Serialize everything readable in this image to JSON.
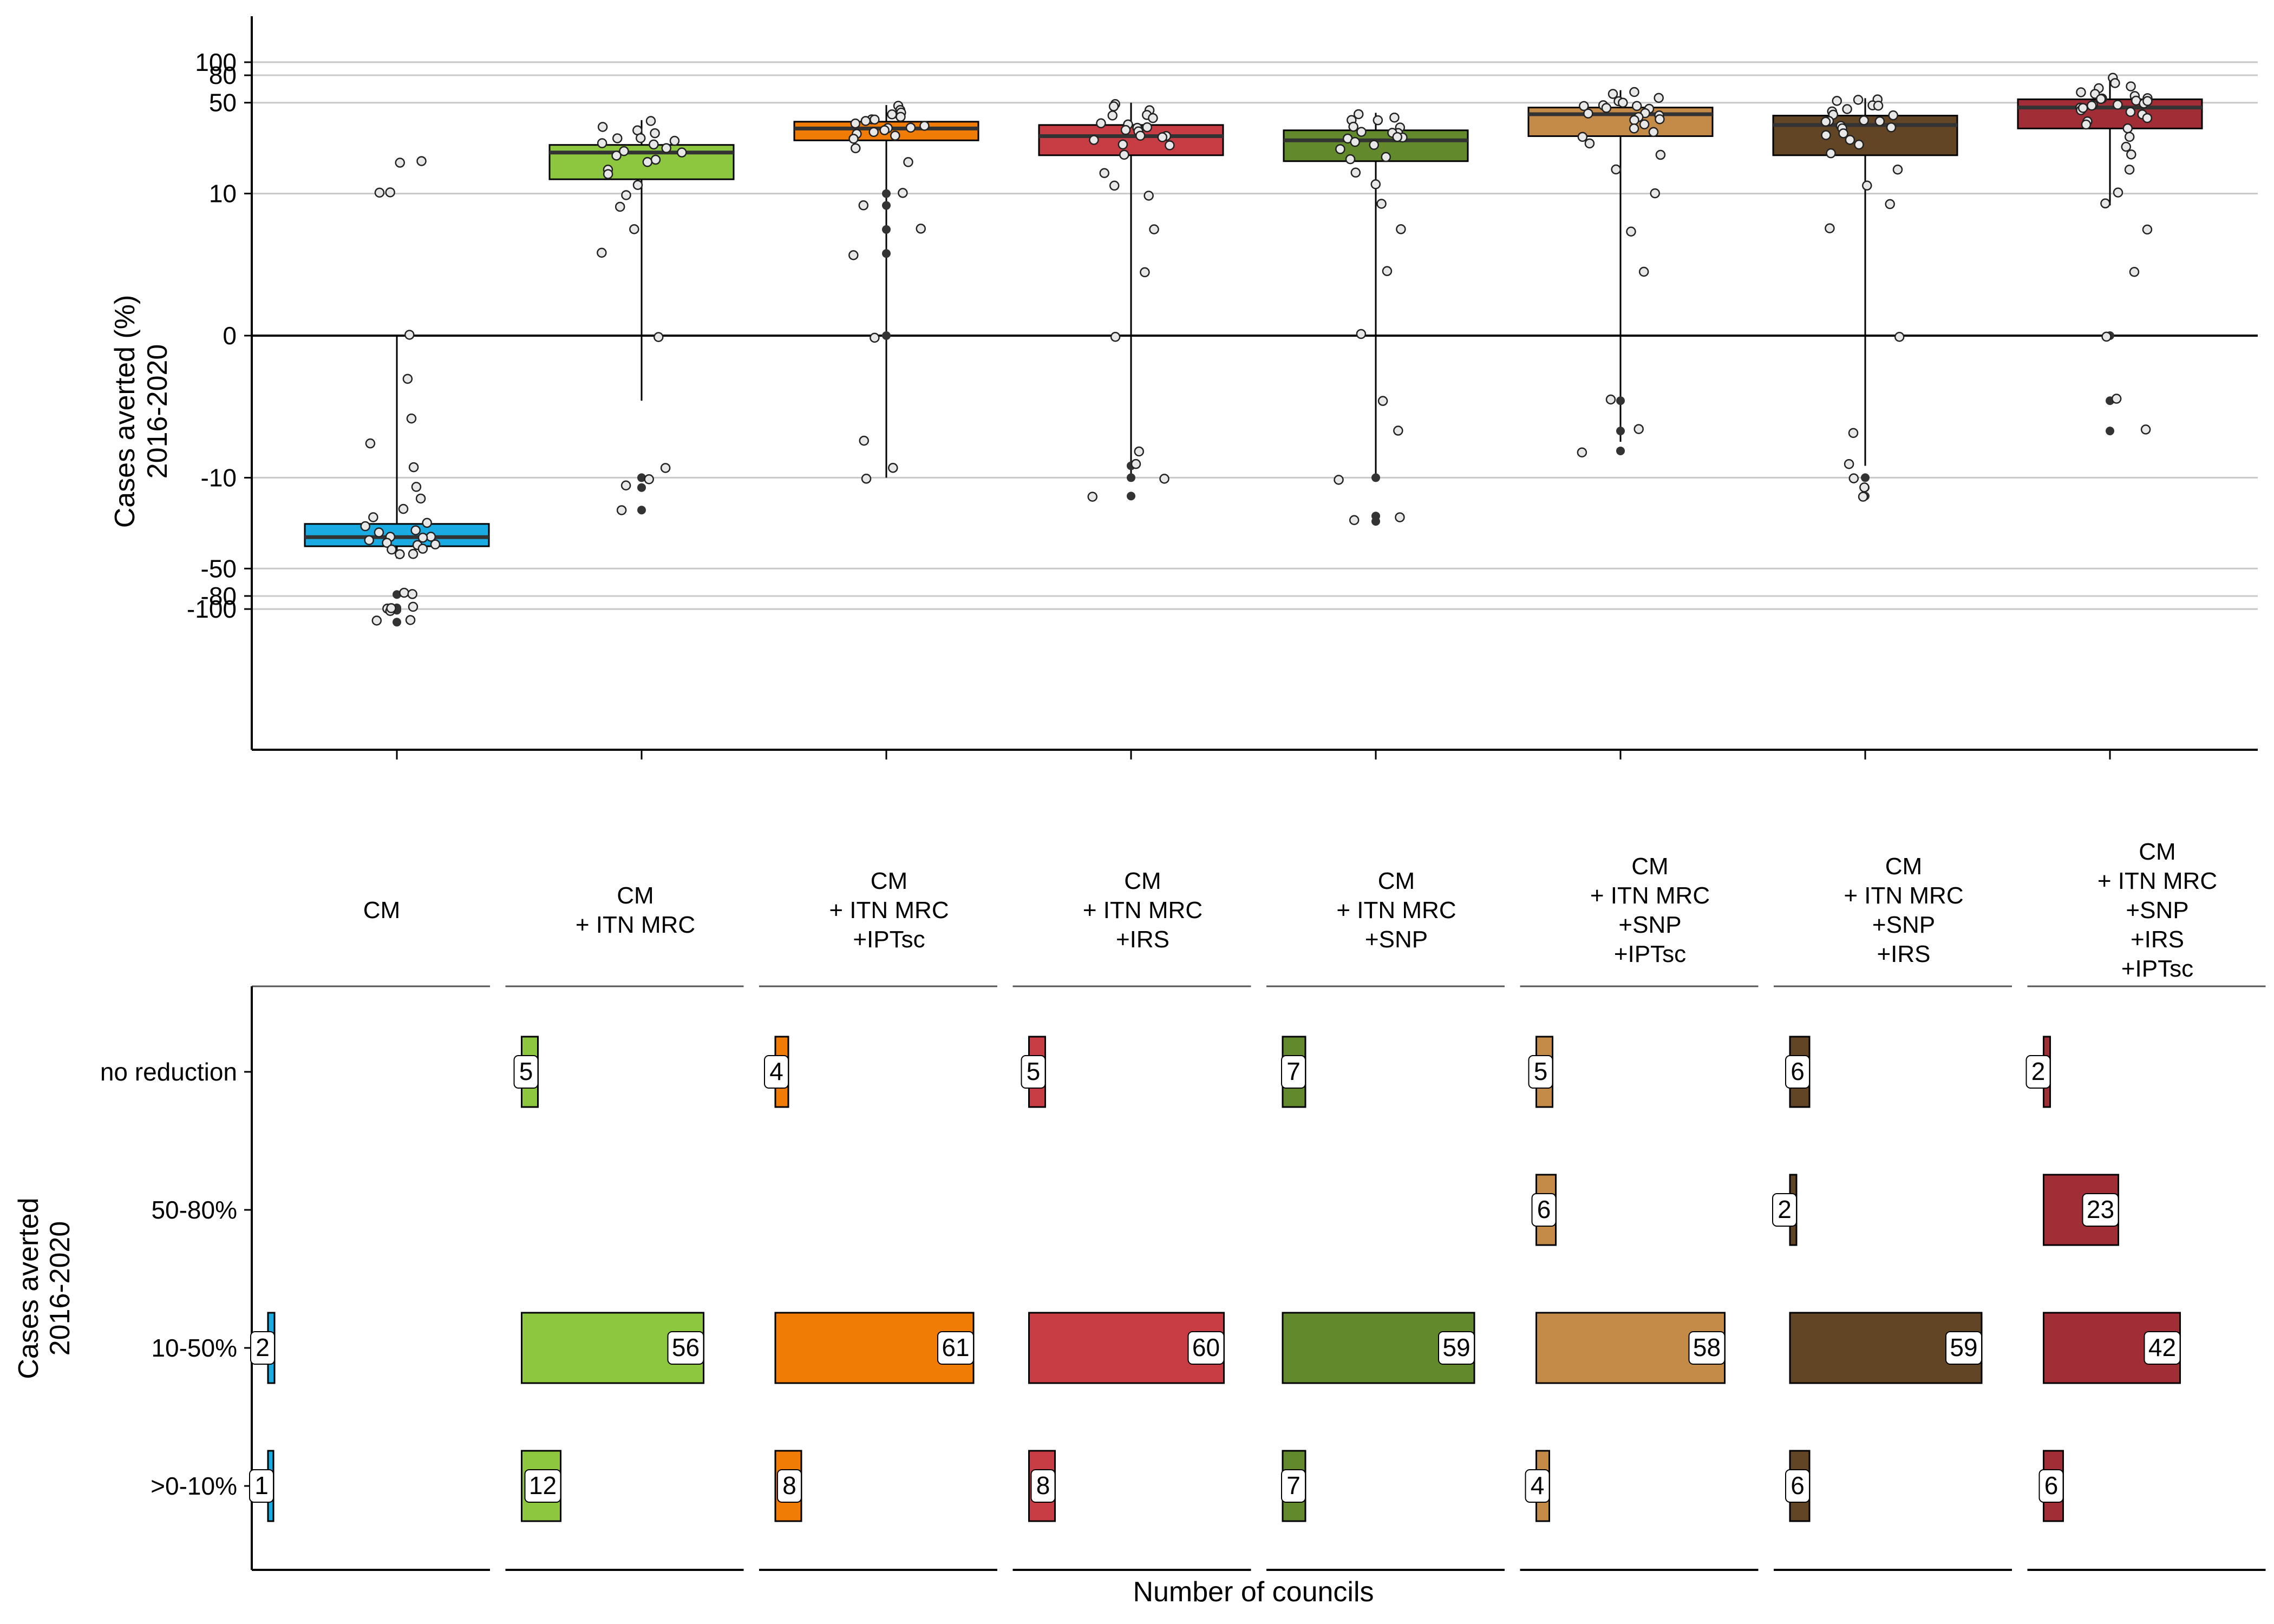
{
  "figure": {
    "top_ylabel_lines": [
      "Cases averted (%)",
      "2016-2020"
    ],
    "bottom_ylabel_lines": [
      "Cases averted",
      "2016-2020"
    ],
    "bottom_xlabel": "Number of councils"
  },
  "chart_data": [
    {
      "type": "box",
      "ylabel": "Cases averted (%) 2016-2020",
      "y_scale": "pseudo-log",
      "y_ticks": [
        100,
        80,
        50,
        10,
        0,
        -10,
        -50,
        -80,
        -100
      ],
      "tick_labels": [
        "100",
        "80",
        "50",
        "10",
        "0",
        "-10",
        "-50",
        "-80",
        "-100"
      ],
      "ylim": [
        -160,
        125
      ],
      "grid": true,
      "zero_line": true,
      "groups": [
        {
          "name": "CM",
          "label_lines": [
            "CM"
          ],
          "color": "#1aabe2",
          "q1": -34,
          "median": -29,
          "q3": -23,
          "whisker_low": -42,
          "whisker_high": 0,
          "points": [
            0,
            -1,
            -3,
            -5,
            -8,
            -12,
            -15,
            -18,
            -20,
            -22,
            -24,
            -26,
            -27,
            -28,
            -29,
            -30,
            -31,
            -32,
            -33,
            -34,
            -35,
            -36,
            -38,
            -40,
            -78,
            -78,
            -98,
            -100,
            -100,
            -102,
            -125,
            -125,
            10,
            10,
            18,
            18
          ],
          "outliers": [
            -78,
            -98,
            -100,
            -102,
            -125
          ]
        },
        {
          "name": "CM + ITN MRC",
          "label_lines": [
            "CM",
            "+ ITN MRC"
          ],
          "color": "#8dc63f",
          "q1": 13,
          "median": 21,
          "q3": 24,
          "whisker_low": -2,
          "whisker_high": 37,
          "points": [
            37,
            33,
            31,
            29,
            28,
            27,
            26,
            25,
            24,
            23,
            22,
            21,
            20,
            19,
            18,
            16,
            14,
            12,
            10,
            8,
            5,
            3,
            0,
            -8,
            -10,
            -12,
            -18
          ],
          "outliers": [
            -10,
            -12,
            -18
          ]
        },
        {
          "name": "CM + ITN MRC +IPTsc",
          "label_lines": [
            "CM",
            "+ ITN MRC",
            "+IPTsc"
          ],
          "color": "#f07b05",
          "q1": 26,
          "median": 32,
          "q3": 36,
          "whisker_low": -10,
          "whisker_high": 48,
          "points": [
            48,
            44,
            42,
            41,
            40,
            39,
            38,
            37,
            36,
            35,
            34,
            33,
            32,
            31,
            30,
            29,
            28,
            26,
            22,
            18,
            10,
            8,
            5,
            3,
            0,
            -5,
            -8,
            -10
          ],
          "outliers": [
            0,
            3,
            5,
            8,
            10
          ]
        },
        {
          "name": "CM + ITN MRC +IRS",
          "label_lines": [
            "CM",
            "+ ITN MRC",
            "+IRS"
          ],
          "color": "#c83c44",
          "q1": 20,
          "median": 28,
          "q3": 34,
          "whisker_low": -10,
          "whisker_high": 50,
          "points": [
            50,
            47,
            44,
            41,
            39,
            37,
            35,
            34,
            33,
            32,
            31,
            30,
            29,
            28,
            27,
            26,
            25,
            23,
            20,
            15,
            12,
            10,
            5,
            2,
            0,
            -6,
            -8,
            -10,
            -14
          ],
          "outliers": [
            -8,
            -10,
            -14
          ]
        },
        {
          "name": "CM + ITN MRC +SNP",
          "label_lines": [
            "CM",
            "+ ITN MRC",
            "+SNP"
          ],
          "color": "#628a2c",
          "q1": 18,
          "median": 26,
          "q3": 31,
          "whisker_low": -10,
          "whisker_high": 42,
          "points": [
            42,
            40,
            38,
            36,
            34,
            32,
            31,
            30,
            29,
            28,
            27,
            26,
            25,
            24,
            22,
            20,
            18,
            15,
            12,
            8,
            5,
            2,
            0,
            -2,
            -4,
            -10,
            -20,
            -22
          ],
          "outliers": [
            -10,
            -20,
            -22
          ]
        },
        {
          "name": "CM + ITN MRC +SNP +IPTsc",
          "label_lines": [
            "CM",
            "+ ITN MRC",
            "+SNP",
            "+IPTsc"
          ],
          "color": "#c48a48",
          "q1": 28,
          "median": 41,
          "q3": 46,
          "whisker_low": -5,
          "whisker_high": 62,
          "points": [
            62,
            58,
            55,
            52,
            50,
            48,
            47,
            46,
            45,
            44,
            43,
            42,
            41,
            40,
            38,
            36,
            34,
            32,
            30,
            28,
            24,
            20,
            15,
            10,
            5,
            2,
            -2,
            -4,
            -6
          ],
          "outliers": [
            -2,
            -4,
            -6
          ]
        },
        {
          "name": "CM + ITN MRC +SNP +IRS",
          "label_lines": [
            "CM",
            "+ ITN MRC",
            "+SNP",
            "+IRS"
          ],
          "color": "#624524",
          "q1": 20,
          "median": 34,
          "q3": 40,
          "whisker_low": -8,
          "whisker_high": 54,
          "points": [
            54,
            52,
            50,
            48,
            46,
            44,
            42,
            40,
            39,
            38,
            37,
            36,
            35,
            34,
            33,
            32,
            30,
            28,
            26,
            24,
            20,
            15,
            12,
            8,
            5,
            0,
            -4,
            -8,
            -10,
            -12,
            -14
          ],
          "outliers": [
            -10,
            -12,
            -14
          ]
        },
        {
          "name": "CM + ITN MRC +SNP +IRS +IPTsc",
          "label_lines": [
            "CM",
            "+ ITN MRC",
            "+SNP",
            "+IRS",
            "+IPTsc"
          ],
          "color": "#a12d36",
          "q1": 32,
          "median": 46,
          "q3": 53,
          "whisker_low": 8,
          "whisker_high": 74,
          "points": [
            74,
            72,
            68,
            64,
            60,
            58,
            56,
            55,
            54,
            53,
            52,
            51,
            50,
            49,
            48,
            47,
            46,
            45,
            44,
            42,
            40,
            38,
            36,
            34,
            32,
            28,
            24,
            20,
            15,
            10,
            8,
            5,
            2,
            0,
            -2,
            -4
          ],
          "outliers": [
            0,
            -2,
            -4
          ]
        }
      ]
    },
    {
      "type": "bar",
      "orientation": "horizontal",
      "facets": [
        "CM",
        "CM + ITN MRC",
        "CM + ITN MRC +IPTsc",
        "CM + ITN MRC +IRS",
        "CM + ITN MRC +SNP",
        "CM + ITN MRC +SNP +IPTsc",
        "CM + ITN MRC +SNP +IRS",
        "CM + ITN MRC +SNP +IRS +IPTsc"
      ],
      "categories": [
        "no reduction",
        "50-80%",
        "10-50%",
        ">0-10%"
      ],
      "ylabel": "Cases averted 2016-2020",
      "xlabel": "Number of councils",
      "xlim": [
        0,
        66
      ],
      "values": [
        [
          null,
          null,
          2,
          1
        ],
        [
          5,
          null,
          56,
          12
        ],
        [
          4,
          null,
          61,
          8
        ],
        [
          5,
          null,
          60,
          8
        ],
        [
          7,
          null,
          59,
          7
        ],
        [
          5,
          6,
          58,
          4
        ],
        [
          6,
          2,
          59,
          6
        ],
        [
          2,
          23,
          42,
          6
        ]
      ]
    }
  ]
}
